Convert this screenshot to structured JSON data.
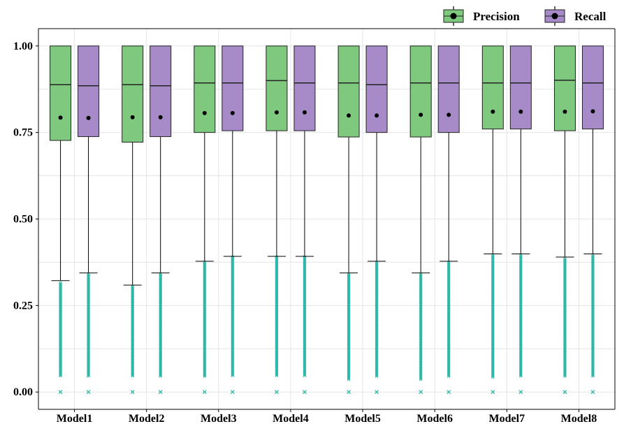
{
  "chart_data": {
    "type": "box",
    "title": "",
    "xlabel": "",
    "ylabel": "",
    "ylim": [
      -0.05,
      1.05
    ],
    "yticks": [
      "0.00",
      "0.25",
      "0.50",
      "0.75",
      "1.00"
    ],
    "grid": true,
    "legend_position": "top-right",
    "categories": [
      "Model1",
      "Model2",
      "Model3",
      "Model4",
      "Model5",
      "Model6",
      "Model7",
      "Model8"
    ],
    "series": [
      {
        "name": "Precision",
        "color": "#7fc97f",
        "boxes": [
          {
            "q1": 0.727,
            "median": 0.888,
            "q3": 1.0,
            "mean": 0.793,
            "whisker_low": 0.322,
            "whisker_high": 1.0,
            "outlier_range": [
              0.045,
              0.315
            ],
            "outlier_zero": true
          },
          {
            "q1": 0.722,
            "median": 0.888,
            "q3": 1.0,
            "mean": 0.794,
            "whisker_low": 0.309,
            "whisker_high": 1.0,
            "outlier_range": [
              0.045,
              0.305
            ],
            "outlier_zero": true
          },
          {
            "q1": 0.75,
            "median": 0.893,
            "q3": 1.0,
            "mean": 0.806,
            "whisker_low": 0.378,
            "whisker_high": 1.0,
            "outlier_range": [
              0.045,
              0.375
            ],
            "outlier_zero": true
          },
          {
            "q1": 0.755,
            "median": 0.9,
            "q3": 1.0,
            "mean": 0.808,
            "whisker_low": 0.392,
            "whisker_high": 1.0,
            "outlier_range": [
              0.045,
              0.39
            ],
            "outlier_zero": true
          },
          {
            "q1": 0.737,
            "median": 0.893,
            "q3": 1.0,
            "mean": 0.799,
            "whisker_low": 0.344,
            "whisker_high": 1.0,
            "outlier_range": [
              0.035,
              0.34
            ],
            "outlier_zero": true
          },
          {
            "q1": 0.737,
            "median": 0.893,
            "q3": 1.0,
            "mean": 0.801,
            "whisker_low": 0.344,
            "whisker_high": 1.0,
            "outlier_range": [
              0.035,
              0.34
            ],
            "outlier_zero": true
          },
          {
            "q1": 0.76,
            "median": 0.893,
            "q3": 1.0,
            "mean": 0.81,
            "whisker_low": 0.399,
            "whisker_high": 1.0,
            "outlier_range": [
              0.04,
              0.395
            ],
            "outlier_zero": true
          },
          {
            "q1": 0.755,
            "median": 0.901,
            "q3": 1.0,
            "mean": 0.81,
            "whisker_low": 0.39,
            "whisker_high": 1.0,
            "outlier_range": [
              0.045,
              0.385
            ],
            "outlier_zero": true
          }
        ]
      },
      {
        "name": "Recall",
        "color": "#a78ac8",
        "boxes": [
          {
            "q1": 0.738,
            "median": 0.885,
            "q3": 1.0,
            "mean": 0.792,
            "whisker_low": 0.344,
            "whisker_high": 1.0,
            "outlier_range": [
              0.045,
              0.34
            ],
            "outlier_zero": true
          },
          {
            "q1": 0.738,
            "median": 0.885,
            "q3": 1.0,
            "mean": 0.794,
            "whisker_low": 0.344,
            "whisker_high": 1.0,
            "outlier_range": [
              0.045,
              0.34
            ],
            "outlier_zero": true
          },
          {
            "q1": 0.755,
            "median": 0.893,
            "q3": 1.0,
            "mean": 0.806,
            "whisker_low": 0.392,
            "whisker_high": 1.0,
            "outlier_range": [
              0.045,
              0.39
            ],
            "outlier_zero": true
          },
          {
            "q1": 0.755,
            "median": 0.893,
            "q3": 1.0,
            "mean": 0.808,
            "whisker_low": 0.392,
            "whisker_high": 1.0,
            "outlier_range": [
              0.045,
              0.39
            ],
            "outlier_zero": true
          },
          {
            "q1": 0.75,
            "median": 0.888,
            "q3": 1.0,
            "mean": 0.799,
            "whisker_low": 0.378,
            "whisker_high": 1.0,
            "outlier_range": [
              0.045,
              0.375
            ],
            "outlier_zero": true
          },
          {
            "q1": 0.75,
            "median": 0.893,
            "q3": 1.0,
            "mean": 0.801,
            "whisker_low": 0.378,
            "whisker_high": 1.0,
            "outlier_range": [
              0.045,
              0.375
            ],
            "outlier_zero": true
          },
          {
            "q1": 0.76,
            "median": 0.893,
            "q3": 1.0,
            "mean": 0.81,
            "whisker_low": 0.399,
            "whisker_high": 1.0,
            "outlier_range": [
              0.045,
              0.395
            ],
            "outlier_zero": true
          },
          {
            "q1": 0.76,
            "median": 0.893,
            "q3": 1.0,
            "mean": 0.811,
            "whisker_low": 0.399,
            "whisker_high": 1.0,
            "outlier_range": [
              0.045,
              0.395
            ],
            "outlier_zero": true
          }
        ]
      }
    ],
    "outlier_color": "#2ab5a5"
  }
}
